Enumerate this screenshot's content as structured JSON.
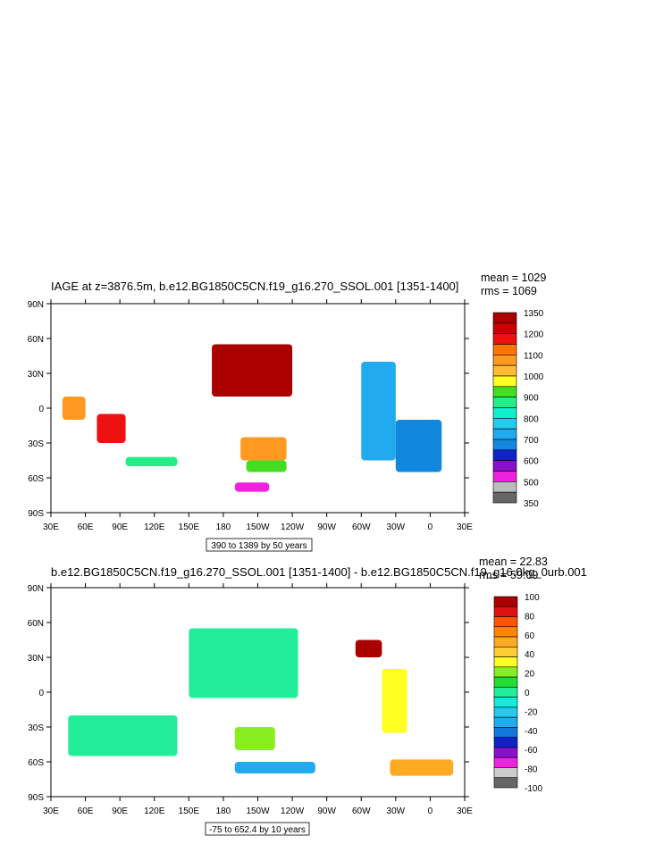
{
  "panels": [
    {
      "title": "IAGE at z=3876.5m, b.e12.BG1850C5CN.f19_g16.270_SSOL.001 [1351-1400]",
      "stats": [
        "mean = 1029",
        "rms = 1069"
      ],
      "contour_info": "390 to 1389 by 50 years",
      "colorbar_labels": [
        "1350",
        "1200",
        "1100",
        "1000",
        "900",
        "800",
        "700",
        "600",
        "500",
        "350"
      ],
      "colors": [
        "#aa0000",
        "#cc0000",
        "#ee1111",
        "#ff7700",
        "#ff9922",
        "#ffbb33",
        "#ffff22",
        "#44dd22",
        "#22ee88",
        "#11eecc",
        "#22ccee",
        "#22aaee",
        "#1188dd",
        "#1122cc",
        "#8811cc",
        "#ee22dd",
        "#bbbbbb",
        "#666666"
      ]
    },
    {
      "title": "b.e12.BG1850C5CN.f19_g16.270_SSOL.001 [1351-1400] - b.e12.BG1850C5CN.f19_g16.0kg_0urb.001",
      "stats": [
        "mean = 22.83",
        "rms = 59.09"
      ],
      "contour_info": "-75 to 652.4 by 10 years",
      "colorbar_labels": [
        "100",
        "80",
        "60",
        "40",
        "20",
        "0",
        "-20",
        "-40",
        "-60",
        "-80",
        "-100"
      ],
      "colors": [
        "#aa0000",
        "#dd1111",
        "#ff5500",
        "#ff8800",
        "#ffaa22",
        "#ffcc33",
        "#ffff22",
        "#88ee22",
        "#22dd33",
        "#22ee99",
        "#11eedd",
        "#22ccee",
        "#22aaee",
        "#1177dd",
        "#1122cc",
        "#8811cc",
        "#ee22dd",
        "#cccccc",
        "#666666"
      ]
    }
  ],
  "axes": {
    "lat_labels": [
      "90N",
      "60N",
      "30N",
      "0",
      "30S",
      "60S",
      "90S"
    ],
    "lon_labels": [
      "30E",
      "60E",
      "90E",
      "120E",
      "150E",
      "180",
      "150W",
      "120W",
      "90W",
      "60W",
      "30W",
      "0",
      "30E"
    ]
  },
  "chart_data": [
    {
      "type": "heatmap",
      "title": "IAGE at z=3876.5m, b.e12.BG1850C5CN.f19_g16.270_SSOL.001 [1351-1400]",
      "x_range": [
        30,
        390
      ],
      "y_range": [
        -90,
        90
      ],
      "legend": "right colorbar",
      "blobs": [
        {
          "lon": [
            170,
            240
          ],
          "lat": [
            10,
            55
          ],
          "v": 1380
        },
        {
          "lon": [
            70,
            95
          ],
          "lat": [
            -30,
            -5
          ],
          "v": 1250
        },
        {
          "lon": [
            195,
            235
          ],
          "lat": [
            -45,
            -25
          ],
          "v": 1130
        },
        {
          "lon": [
            200,
            235
          ],
          "lat": [
            -55,
            -45
          ],
          "v": 980
        },
        {
          "lon": [
            95,
            140
          ],
          "lat": [
            -50,
            -42
          ],
          "v": 880
        },
        {
          "lon": [
            300,
            330
          ],
          "lat": [
            -45,
            40
          ],
          "v": 730
        },
        {
          "lon": [
            330,
            370
          ],
          "lat": [
            -55,
            -10
          ],
          "v": 650
        },
        {
          "lon": [
            190,
            220
          ],
          "lat": [
            -72,
            -64
          ],
          "v": 500
        },
        {
          "lon": [
            40,
            60
          ],
          "lat": [
            -10,
            10
          ],
          "v": 1150
        }
      ]
    },
    {
      "type": "heatmap",
      "title": "b.e12.BG1850C5CN.f19_g16.270_SSOL.001 [1351-1400] - b.e12.BG1850C5CN.f19_g16.0kg_0urb.001",
      "x_range": [
        30,
        390
      ],
      "y_range": [
        -90,
        90
      ],
      "legend": "right colorbar",
      "blobs": [
        {
          "lon": [
            150,
            245
          ],
          "lat": [
            -5,
            55
          ],
          "v": 5
        },
        {
          "lon": [
            295,
            318
          ],
          "lat": [
            30,
            45
          ],
          "v": 95
        },
        {
          "lon": [
            318,
            340
          ],
          "lat": [
            -35,
            20
          ],
          "v": 30
        },
        {
          "lon": [
            325,
            380
          ],
          "lat": [
            -72,
            -58
          ],
          "v": 55
        },
        {
          "lon": [
            45,
            140
          ],
          "lat": [
            -55,
            -20
          ],
          "v": 5
        },
        {
          "lon": [
            190,
            260
          ],
          "lat": [
            -70,
            -60
          ],
          "v": -30
        },
        {
          "lon": [
            190,
            225
          ],
          "lat": [
            -50,
            -30
          ],
          "v": 25
        }
      ]
    }
  ]
}
